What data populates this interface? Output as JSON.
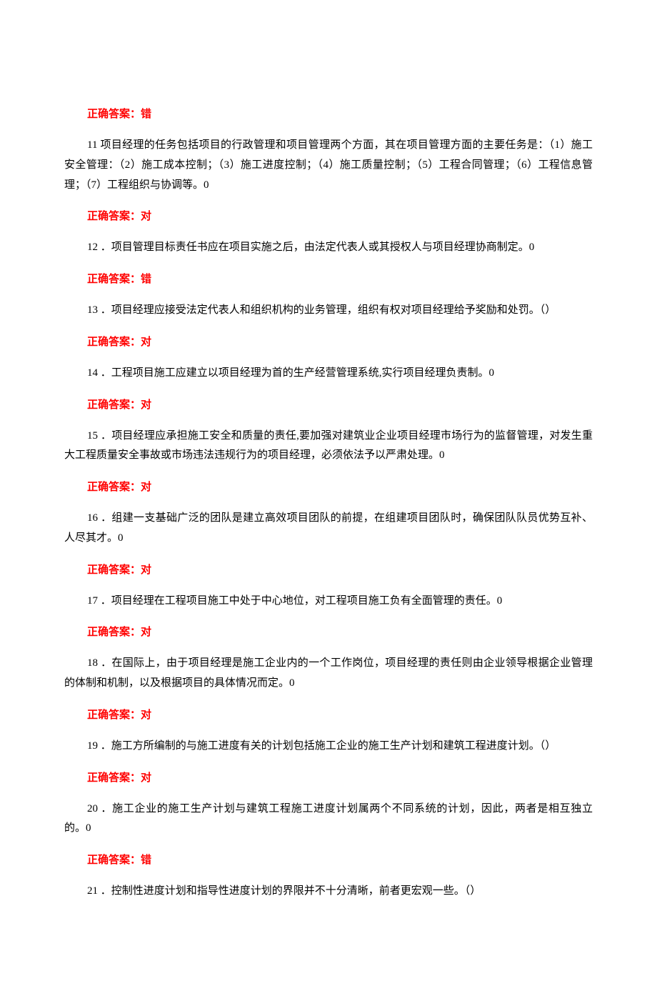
{
  "text_color": "#000000",
  "answer_color": "#ff0000",
  "background_color": "#ffffff",
  "font_size": 15,
  "line_height": 1.85,
  "answer_label": "正确答案：",
  "items": [
    {
      "type": "answer",
      "value": "错"
    },
    {
      "type": "question",
      "text": "11 项目经理的任务包括项目的行政管理和项目管理两个方面，其在项目管理方面的主要任务是：（1）施工安全管理：（2）施工成本控制；（3）施工进度控制；（4）施工质量控制；（5）工程合同管理；（6）工程信息管理；（7）工程组织与协调等。0"
    },
    {
      "type": "answer",
      "value": "对"
    },
    {
      "type": "question",
      "text": "12 ．项目管理目标责任书应在项目实施之后，由法定代表人或其授权人与项目经理协商制定。0"
    },
    {
      "type": "answer",
      "value": "错"
    },
    {
      "type": "question",
      "text": "13 ．项目经理应接受法定代表人和组织机构的业务管理，组织有权对项目经理给予奖励和处罚。（）"
    },
    {
      "type": "answer",
      "value": "对"
    },
    {
      "type": "question",
      "text": "14 ．工程项目施工应建立以项目经理为首的生产经营管理系统,实行项目经理负责制。0"
    },
    {
      "type": "answer",
      "value": "对"
    },
    {
      "type": "question",
      "text": "15 ．项目经理应承担施工安全和质量的责任,要加强对建筑业企业项目经理市场行为的监督管理，对发生重大工程质量安全事故或市场违法违规行为的项目经理，必须依法予以严肃处理。0"
    },
    {
      "type": "answer",
      "value": "对"
    },
    {
      "type": "question",
      "text": "16 ．组建一支基础广泛的团队是建立高效项目团队的前提，在组建项目团队时，确保团队队员优势互补、人尽其才。0"
    },
    {
      "type": "answer",
      "value": "对"
    },
    {
      "type": "question",
      "text": "17 ．项目经理在工程项目施工中处于中心地位，对工程项目施工负有全面管理的责任。0"
    },
    {
      "type": "answer",
      "value": "对"
    },
    {
      "type": "question",
      "text": "18 ．在国际上，由于项目经理是施工企业内的一个工作岗位，项目经理的责任则由企业领导根据企业管理的体制和机制，以及根据项目的具体情况而定。0"
    },
    {
      "type": "answer",
      "value": "对"
    },
    {
      "type": "question",
      "text": "19 ．施工方所编制的与施工进度有关的计划包括施工企业的施工生产计划和建筑工程进度计划。（）"
    },
    {
      "type": "answer",
      "value": "对"
    },
    {
      "type": "question",
      "text": "20 ．施工企业的施工生产计划与建筑工程施工进度计划属两个不同系统的计划，因此，两者是相互独立的。0"
    },
    {
      "type": "answer",
      "value": "错"
    },
    {
      "type": "question",
      "text": "21 ．控制性进度计划和指导性进度计划的界限并不十分清晰，前者更宏观一些。（）"
    }
  ]
}
